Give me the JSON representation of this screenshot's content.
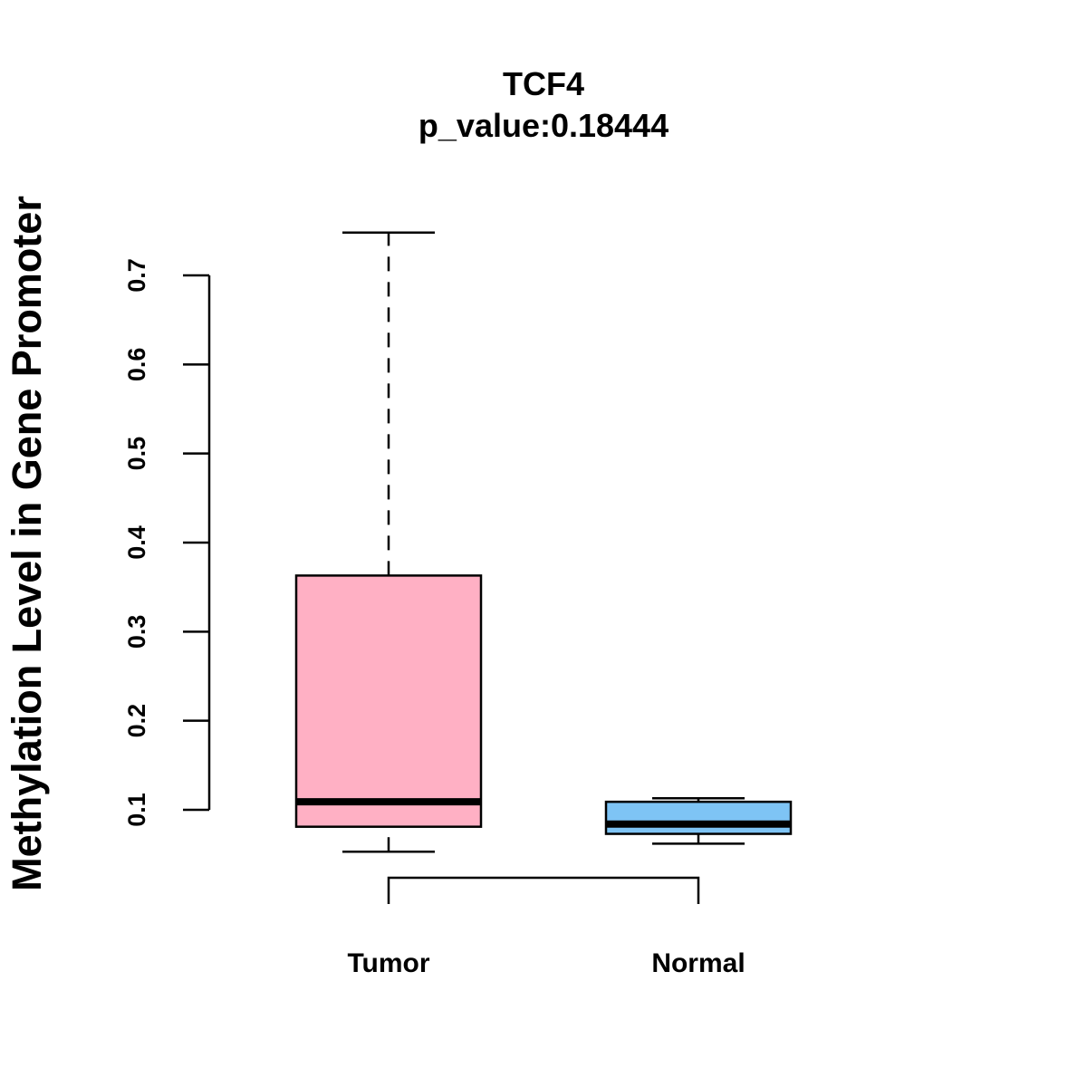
{
  "chart_data": {
    "type": "boxplot",
    "title": "TCF4",
    "subtitle": "p_value:0.18444",
    "xlabel": "",
    "ylabel": "Methylation Level in Gene Promoter",
    "yticks": [
      0.1,
      0.2,
      0.3,
      0.4,
      0.5,
      0.6,
      0.7
    ],
    "ytick_labels": [
      "0.1",
      "0.2",
      "0.3",
      "0.4",
      "0.5",
      "0.6",
      "0.7"
    ],
    "categories": [
      "Tumor",
      "Normal"
    ],
    "boxes": [
      {
        "name": "Tumor",
        "whisker_low": 0.053,
        "q1": 0.081,
        "median": 0.109,
        "q3": 0.363,
        "whisker_high": 0.748,
        "color": "#FFB0C4"
      },
      {
        "name": "Normal",
        "whisker_low": 0.062,
        "q1": 0.073,
        "median": 0.084,
        "q3": 0.109,
        "whisker_high": 0.113,
        "color": "#7EC4F5"
      }
    ],
    "comparison_bracket": [
      "Tumor",
      "Normal"
    ],
    "grid": false
  }
}
